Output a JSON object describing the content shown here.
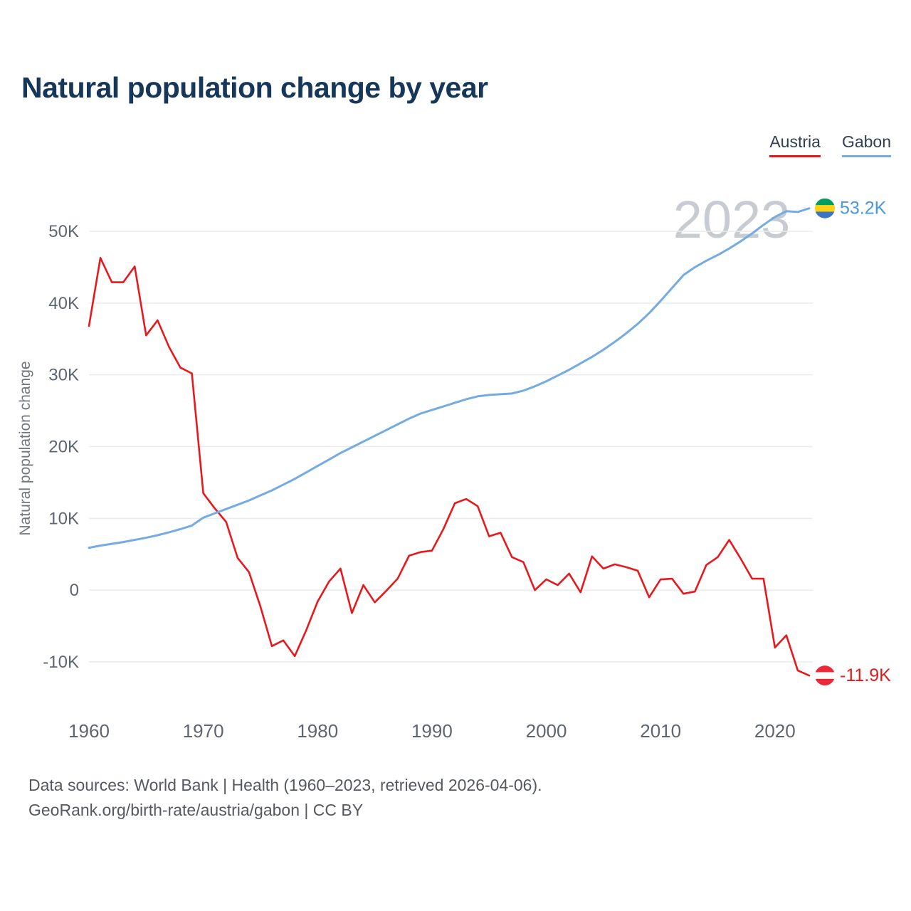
{
  "page": {
    "title": "Natural population change by year"
  },
  "legend": [
    {
      "label": "Austria",
      "color": "#e8191d"
    },
    {
      "label": "Gabon",
      "color": "#74abe2"
    }
  ],
  "footer": {
    "line1": "Data sources: World Bank | Health (1960–2023, retrieved 2026-04-06).",
    "line2": "GeoRank.org/birth-rate/austria/gabon | CC BY"
  },
  "chart_data": {
    "type": "line",
    "title": "Natural population change by year",
    "xlabel": "",
    "ylabel": "Natural population change",
    "watermark": "2023",
    "grid": "horizontal",
    "legend_position": "top-right",
    "xlim": [
      1960,
      2023
    ],
    "ylim": [
      -13000,
      55000
    ],
    "x_ticks": [
      1960,
      1970,
      1980,
      1990,
      2000,
      2010,
      2020
    ],
    "y_ticks": [
      -10000,
      0,
      10000,
      20000,
      30000,
      40000,
      50000
    ],
    "y_tick_labels": [
      "-10K",
      "0",
      "10K",
      "20K",
      "30K",
      "40K",
      "50K"
    ],
    "years": [
      1960,
      1961,
      1962,
      1963,
      1964,
      1965,
      1966,
      1967,
      1968,
      1969,
      1970,
      1971,
      1972,
      1973,
      1974,
      1975,
      1976,
      1977,
      1978,
      1979,
      1980,
      1981,
      1982,
      1983,
      1984,
      1985,
      1986,
      1987,
      1988,
      1989,
      1990,
      1991,
      1992,
      1993,
      1994,
      1995,
      1996,
      1997,
      1998,
      1999,
      2000,
      2001,
      2002,
      2003,
      2004,
      2005,
      2006,
      2007,
      2008,
      2009,
      2010,
      2011,
      2012,
      2013,
      2014,
      2015,
      2016,
      2017,
      2018,
      2019,
      2020,
      2021,
      2022,
      2023
    ],
    "series": [
      {
        "name": "Austria",
        "color": "#e8191d",
        "label_color": "#e8191d",
        "end_label": "-11.9K",
        "flag_icon": "austria-flag-icon",
        "flag_colors": [
          "#ed2939",
          "#ffffff",
          "#ed2939"
        ],
        "values": [
          36800,
          46300,
          42900,
          42900,
          45100,
          35500,
          37600,
          33900,
          31000,
          30200,
          13500,
          11400,
          9500,
          4500,
          2500,
          -2300,
          -7800,
          -7000,
          -9200,
          -5600,
          -1600,
          1200,
          3000,
          -3200,
          700,
          -1700,
          -100,
          1600,
          4800,
          5300,
          5500,
          8500,
          12100,
          12700,
          11700,
          7500,
          8000,
          4600,
          3900,
          0,
          1500,
          700,
          2300,
          -300,
          4700,
          3000,
          3600,
          3200,
          2700,
          -1000,
          1500,
          1600,
          -500,
          -200,
          3500,
          4600,
          7000,
          4400,
          1600,
          1600,
          -8000,
          -6300,
          -11200,
          -11900
        ]
      },
      {
        "name": "Gabon",
        "color": "#74abe2",
        "label_color": "#4a97dd",
        "end_label": "53.2K",
        "flag_icon": "gabon-flag-icon",
        "flag_colors": [
          "#009e60",
          "#fcd116",
          "#3a75c4"
        ],
        "values": [
          5900,
          6200,
          6450,
          6700,
          7000,
          7300,
          7650,
          8050,
          8500,
          9000,
          10100,
          10700,
          11300,
          11900,
          12500,
          13200,
          13900,
          14700,
          15500,
          16400,
          17300,
          18200,
          19100,
          19900,
          20700,
          21500,
          22300,
          23100,
          23900,
          24600,
          25100,
          25600,
          26100,
          26600,
          27000,
          27200,
          27300,
          27400,
          27800,
          28400,
          29100,
          29900,
          30700,
          31600,
          32500,
          33500,
          34600,
          35800,
          37100,
          38600,
          40300,
          42100,
          43900,
          45000,
          45900,
          46700,
          47600,
          48600,
          49700,
          50900,
          52000,
          52800,
          52700,
          53200
        ]
      }
    ]
  }
}
